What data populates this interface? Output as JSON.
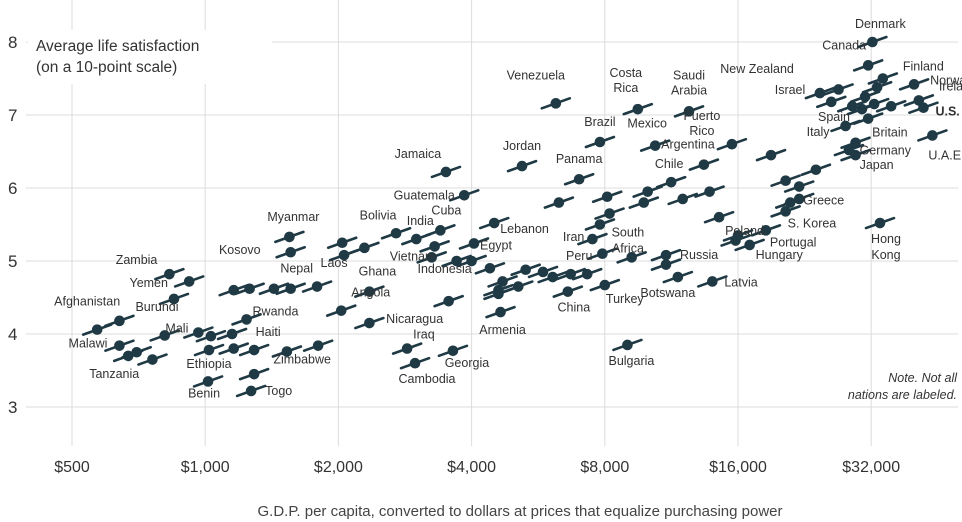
{
  "chart_data": {
    "type": "scatter",
    "title": "Average life satisfaction",
    "subtitle": "(on a 10-point scale)",
    "xlabel": "G.D.P. per capita, converted to dollars at prices that equalize purchasing power",
    "ylabel": "",
    "x_scale": "log2",
    "x_ticks": [
      500,
      1000,
      2000,
      4000,
      8000,
      16000,
      32000
    ],
    "x_tick_labels": [
      "$500",
      "$1,000",
      "$2,000",
      "$4,000",
      "$8,000",
      "$16,000",
      "$32,000"
    ],
    "y_ticks": [
      3,
      4,
      5,
      6,
      7,
      8
    ],
    "y_tick_labels": [
      "3",
      "4",
      "5",
      "6",
      "7",
      "8"
    ],
    "xlim": [
      400,
      48000
    ],
    "ylim": [
      2.6,
      8.35
    ],
    "grid": true,
    "note": [
      "Note. Not all",
      "nations are labeled."
    ],
    "series": [
      {
        "points": [
          {
            "x": 32200,
            "y": 8.0,
            "label": "Denmark"
          },
          {
            "x": 31500,
            "y": 7.68,
            "label": "Canada"
          },
          {
            "x": 34000,
            "y": 7.5,
            "label": "Finland"
          },
          {
            "x": 40000,
            "y": 7.42,
            "label": "Norway"
          },
          {
            "x": 24500,
            "y": 7.3,
            "label": "New Zealand"
          },
          {
            "x": 41000,
            "y": 7.2,
            "label": "Ireland"
          },
          {
            "x": 26000,
            "y": 7.18,
            "label": "Israel"
          },
          {
            "x": 42000,
            "y": 7.1,
            "label": "U.S.",
            "bold": true
          },
          {
            "x": 30500,
            "y": 7.08,
            "label": "Spain"
          },
          {
            "x": 28000,
            "y": 6.85,
            "label": "Italy"
          },
          {
            "x": 31500,
            "y": 6.95,
            "label": "Britain"
          },
          {
            "x": 29500,
            "y": 6.62,
            "label": "Germany"
          },
          {
            "x": 29500,
            "y": 6.45,
            "label": "Japan"
          },
          {
            "x": 44000,
            "y": 6.72,
            "label": "U.A.E."
          },
          {
            "x": 15500,
            "y": 6.6,
            "label": "Puerto Rico"
          },
          {
            "x": 6200,
            "y": 7.16,
            "label": "Venezuela"
          },
          {
            "x": 9500,
            "y": 7.08,
            "label": "Costa Rica"
          },
          {
            "x": 12400,
            "y": 7.05,
            "label": "Saudi Arabia"
          },
          {
            "x": 7800,
            "y": 6.63,
            "label": "Brazil"
          },
          {
            "x": 10400,
            "y": 6.58,
            "label": "Mexico"
          },
          {
            "x": 13400,
            "y": 6.32,
            "label": "Argentina"
          },
          {
            "x": 5200,
            "y": 6.3,
            "label": "Jordan"
          },
          {
            "x": 3500,
            "y": 6.22,
            "label": "Jamaica"
          },
          {
            "x": 7000,
            "y": 6.12,
            "label": "Panama"
          },
          {
            "x": 11300,
            "y": 6.08,
            "label": "Chile"
          },
          {
            "x": 3850,
            "y": 5.9,
            "label": "Guatemala"
          },
          {
            "x": 22000,
            "y": 6.02,
            "label": "Greece"
          },
          {
            "x": 4500,
            "y": 5.52,
            "label": "Lebanon"
          },
          {
            "x": 7800,
            "y": 5.5,
            "label": "South Africa"
          },
          {
            "x": 7500,
            "y": 5.3,
            "label": "Iran"
          },
          {
            "x": 14500,
            "y": 5.6,
            "label": "Poland"
          },
          {
            "x": 20500,
            "y": 5.68,
            "label": "S. Korea"
          },
          {
            "x": 18500,
            "y": 5.42,
            "label": "Portugal"
          },
          {
            "x": 17000,
            "y": 5.22,
            "label": "Hungary"
          },
          {
            "x": 33500,
            "y": 5.52,
            "label": "Hong Kong"
          },
          {
            "x": 1550,
            "y": 5.33,
            "label": "Myanmar"
          },
          {
            "x": 1560,
            "y": 5.12,
            "label": "Kosovo"
          },
          {
            "x": 2700,
            "y": 5.38,
            "label": "Bolivia"
          },
          {
            "x": 3000,
            "y": 5.3,
            "label": "India"
          },
          {
            "x": 3400,
            "y": 5.42,
            "label": "Cuba"
          },
          {
            "x": 3300,
            "y": 5.2,
            "label": "Vietnam"
          },
          {
            "x": 4050,
            "y": 5.24,
            "label": "Egypt"
          },
          {
            "x": 2060,
            "y": 5.08,
            "label": "Laos"
          },
          {
            "x": 3700,
            "y": 5.0,
            "label": "Indonesia"
          },
          {
            "x": 7300,
            "y": 4.82,
            "label": "Peru"
          },
          {
            "x": 11000,
            "y": 5.08,
            "label": "Russia"
          },
          {
            "x": 830,
            "y": 4.82,
            "label": "Zambia"
          },
          {
            "x": 850,
            "y": 4.48,
            "label": "Yemen"
          },
          {
            "x": 1560,
            "y": 4.62,
            "label": "Nepal"
          },
          {
            "x": 2350,
            "y": 4.58,
            "label": "Ghana"
          },
          {
            "x": 2030,
            "y": 4.32,
            "label": "Angola"
          },
          {
            "x": 1240,
            "y": 4.2,
            "label": "Rwanda"
          },
          {
            "x": 3550,
            "y": 4.45,
            "label": "Nicaragua"
          },
          {
            "x": 8000,
            "y": 4.67,
            "label": "Turkey"
          },
          {
            "x": 6600,
            "y": 4.58,
            "label": "China"
          },
          {
            "x": 11700,
            "y": 4.78,
            "label": "Botswana"
          },
          {
            "x": 14000,
            "y": 4.72,
            "label": "Latvia"
          },
          {
            "x": 4650,
            "y": 4.3,
            "label": "Armenia"
          },
          {
            "x": 570,
            "y": 4.06,
            "label": "Afghanistan"
          },
          {
            "x": 640,
            "y": 4.18,
            "label": "Burundi"
          },
          {
            "x": 965,
            "y": 4.02,
            "label": "Mali"
          },
          {
            "x": 1020,
            "y": 3.78,
            "label": "Ethiopia"
          },
          {
            "x": 1290,
            "y": 3.78,
            "label": "Haiti"
          },
          {
            "x": 1800,
            "y": 3.84,
            "label": "Zimbabwe"
          },
          {
            "x": 2860,
            "y": 3.8,
            "label": "Iraq"
          },
          {
            "x": 3630,
            "y": 3.77,
            "label": "Georgia"
          },
          {
            "x": 2980,
            "y": 3.6,
            "label": "Cambodia"
          },
          {
            "x": 640,
            "y": 3.84,
            "label": "Malawi"
          },
          {
            "x": 670,
            "y": 3.7,
            "label": "Tanzania"
          },
          {
            "x": 1015,
            "y": 3.35,
            "label": "Benin"
          },
          {
            "x": 1270,
            "y": 3.22,
            "label": "Togo"
          },
          {
            "x": 9000,
            "y": 3.85,
            "label": "Bulgaria"
          },
          {
            "x": 27000,
            "y": 7.35
          },
          {
            "x": 29000,
            "y": 7.12
          },
          {
            "x": 31000,
            "y": 7.25
          },
          {
            "x": 33000,
            "y": 7.38
          },
          {
            "x": 32500,
            "y": 7.15
          },
          {
            "x": 35500,
            "y": 7.12
          },
          {
            "x": 28500,
            "y": 6.52
          },
          {
            "x": 24000,
            "y": 6.25
          },
          {
            "x": 20500,
            "y": 6.1
          },
          {
            "x": 22000,
            "y": 5.85
          },
          {
            "x": 21000,
            "y": 5.8
          },
          {
            "x": 19000,
            "y": 6.45
          },
          {
            "x": 16000,
            "y": 5.35
          },
          {
            "x": 15800,
            "y": 5.28
          },
          {
            "x": 13800,
            "y": 5.95
          },
          {
            "x": 12000,
            "y": 5.85
          },
          {
            "x": 10000,
            "y": 5.95
          },
          {
            "x": 9800,
            "y": 5.8
          },
          {
            "x": 8100,
            "y": 5.88
          },
          {
            "x": 8200,
            "y": 5.65
          },
          {
            "x": 6300,
            "y": 5.8
          },
          {
            "x": 7900,
            "y": 5.1
          },
          {
            "x": 9200,
            "y": 5.05
          },
          {
            "x": 11000,
            "y": 4.95
          },
          {
            "x": 5300,
            "y": 4.88
          },
          {
            "x": 4700,
            "y": 4.72
          },
          {
            "x": 4600,
            "y": 4.6
          },
          {
            "x": 5100,
            "y": 4.65
          },
          {
            "x": 6100,
            "y": 4.78
          },
          {
            "x": 5800,
            "y": 4.85
          },
          {
            "x": 6700,
            "y": 4.82
          },
          {
            "x": 4400,
            "y": 4.9
          },
          {
            "x": 3250,
            "y": 5.05
          },
          {
            "x": 4000,
            "y": 5.0
          },
          {
            "x": 2290,
            "y": 5.18
          },
          {
            "x": 2040,
            "y": 5.25
          },
          {
            "x": 1260,
            "y": 4.62
          },
          {
            "x": 1430,
            "y": 4.62
          },
          {
            "x": 1790,
            "y": 4.65
          },
          {
            "x": 920,
            "y": 4.72
          },
          {
            "x": 1160,
            "y": 4.6
          },
          {
            "x": 1030,
            "y": 3.97
          },
          {
            "x": 1150,
            "y": 4.0
          },
          {
            "x": 1160,
            "y": 3.8
          },
          {
            "x": 1530,
            "y": 3.76
          },
          {
            "x": 2350,
            "y": 4.15
          },
          {
            "x": 4600,
            "y": 4.55
          },
          {
            "x": 760,
            "y": 3.65
          },
          {
            "x": 700,
            "y": 3.75
          },
          {
            "x": 810,
            "y": 3.98
          },
          {
            "x": 1290,
            "y": 3.45
          }
        ]
      }
    ]
  }
}
